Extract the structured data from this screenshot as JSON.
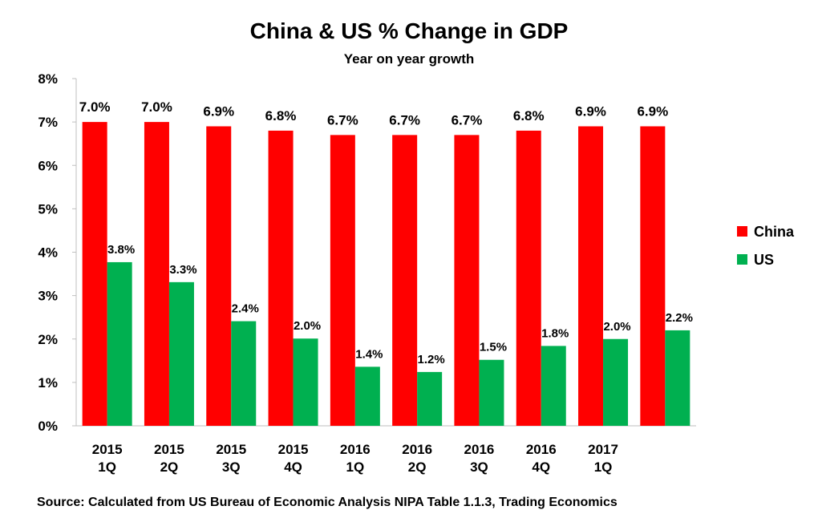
{
  "chart_data": {
    "type": "bar",
    "title": "China & US % Change in GDP",
    "subtitle": "Year on year growth",
    "categories": [
      [
        "2015",
        "1Q"
      ],
      [
        "2015",
        "2Q"
      ],
      [
        "2015",
        "3Q"
      ],
      [
        "2015",
        "4Q"
      ],
      [
        "2016",
        "1Q"
      ],
      [
        "2016",
        "2Q"
      ],
      [
        "2016",
        "3Q"
      ],
      [
        "2016",
        "4Q"
      ],
      [
        "2017",
        "1Q"
      ],
      [
        "",
        ""
      ]
    ],
    "series": [
      {
        "name": "China",
        "color": "#ff0000",
        "values": [
          7.0,
          7.0,
          6.9,
          6.8,
          6.7,
          6.7,
          6.7,
          6.8,
          6.9,
          6.9
        ],
        "labels": [
          "7.0%",
          "7.0%",
          "6.9%",
          "6.8%",
          "6.7%",
          "6.7%",
          "6.7%",
          "6.8%",
          "6.9%",
          "6.9%"
        ]
      },
      {
        "name": "US",
        "color": "#00b050",
        "values": [
          3.77,
          3.31,
          2.41,
          2.01,
          1.36,
          1.24,
          1.52,
          1.84,
          2.0,
          2.2
        ],
        "labels": [
          "3.8%",
          "3.3%",
          "2.4%",
          "2.0%",
          "1.4%",
          "1.2%",
          "1.5%",
          "1.8%",
          "2.0%",
          "2.2%"
        ]
      }
    ],
    "ylim": [
      0,
      8
    ],
    "yticks": [
      "0%",
      "1%",
      "2%",
      "3%",
      "4%",
      "5%",
      "6%",
      "7%",
      "8%"
    ],
    "xlabel": "",
    "ylabel": "",
    "grid": false,
    "legend_position": "right",
    "source": "Source: Calculated from US Bureau of Economic Analysis NIPA Table 1.1.3, Trading Economics"
  }
}
